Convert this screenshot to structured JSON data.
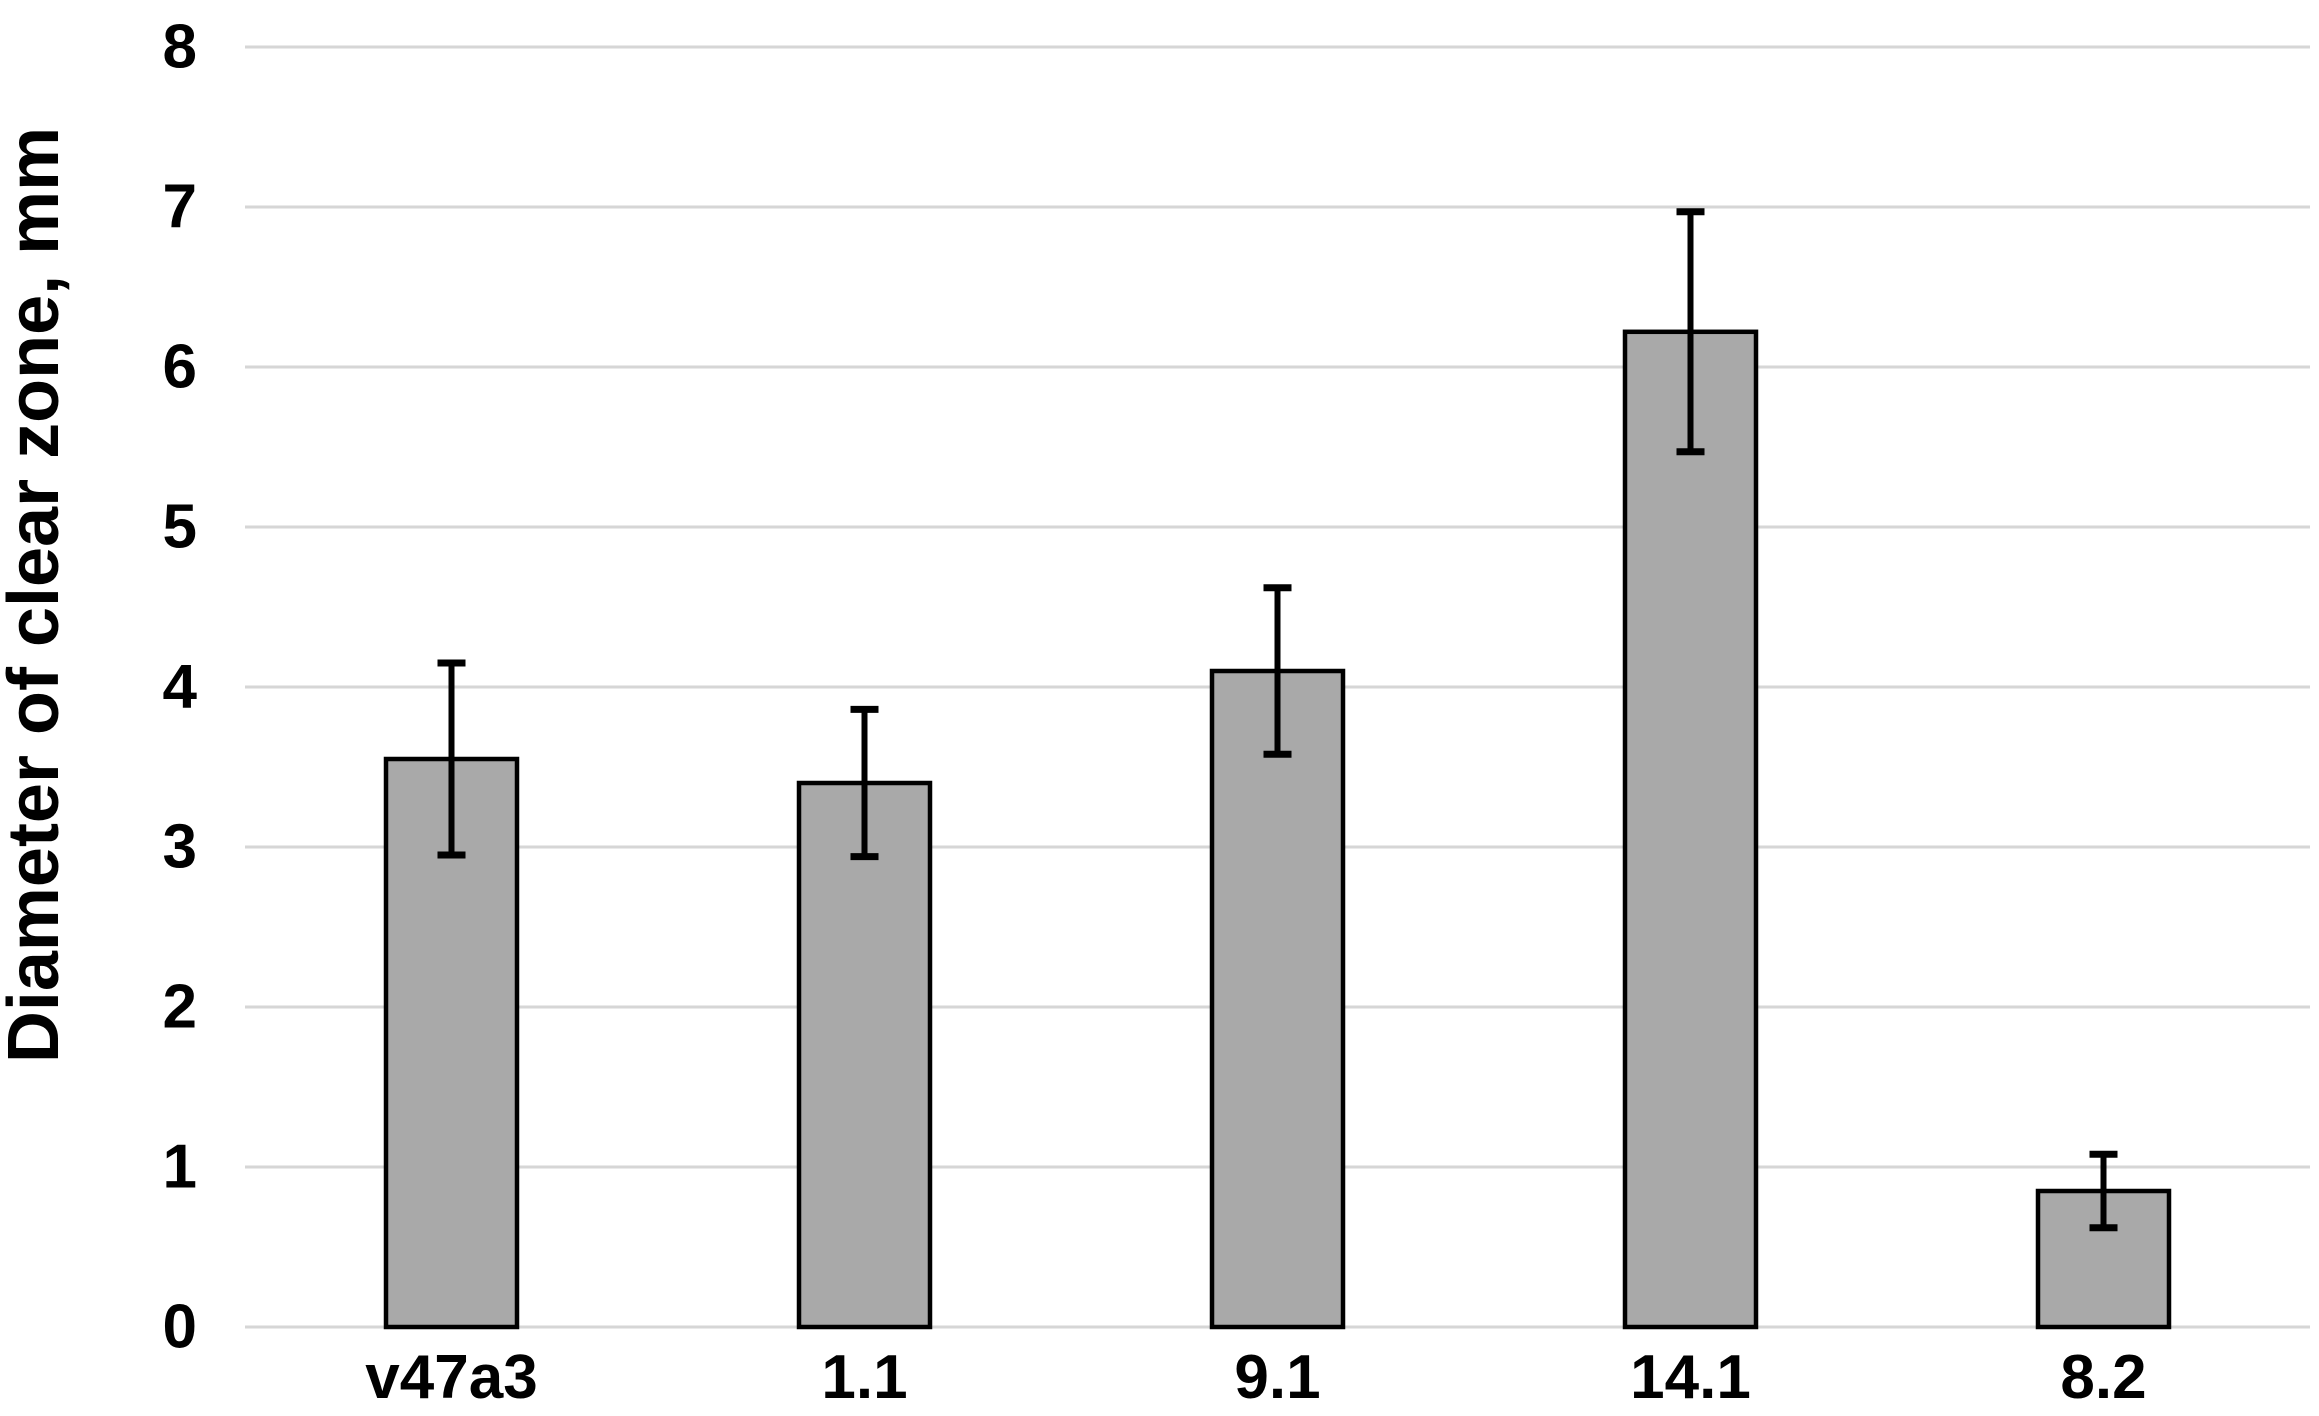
{
  "chart_data": {
    "type": "bar",
    "title": "",
    "xlabel": "",
    "ylabel": "Diameter of clear zone, mm",
    "categories": [
      "v47a3",
      "1.1",
      "9.1",
      "14.1",
      "8.2"
    ],
    "values": [
      3.55,
      3.4,
      4.1,
      6.22,
      0.85
    ],
    "error_plus": [
      0.6,
      0.46,
      0.52,
      0.75,
      0.23
    ],
    "error_minus": [
      0.6,
      0.46,
      0.52,
      0.75,
      0.23
    ],
    "ylim": [
      0,
      8
    ],
    "yticks": [
      0,
      1,
      2,
      3,
      4,
      5,
      6,
      7,
      8
    ],
    "grid": "horizontal-only",
    "legend": "none",
    "colors": {
      "bar_fill": "#A9A9A9",
      "bar_border": "#000000",
      "error_bar": "#000000",
      "gridline": "#D6D6D6",
      "text": "#000000",
      "background": "#FFFFFF"
    }
  }
}
